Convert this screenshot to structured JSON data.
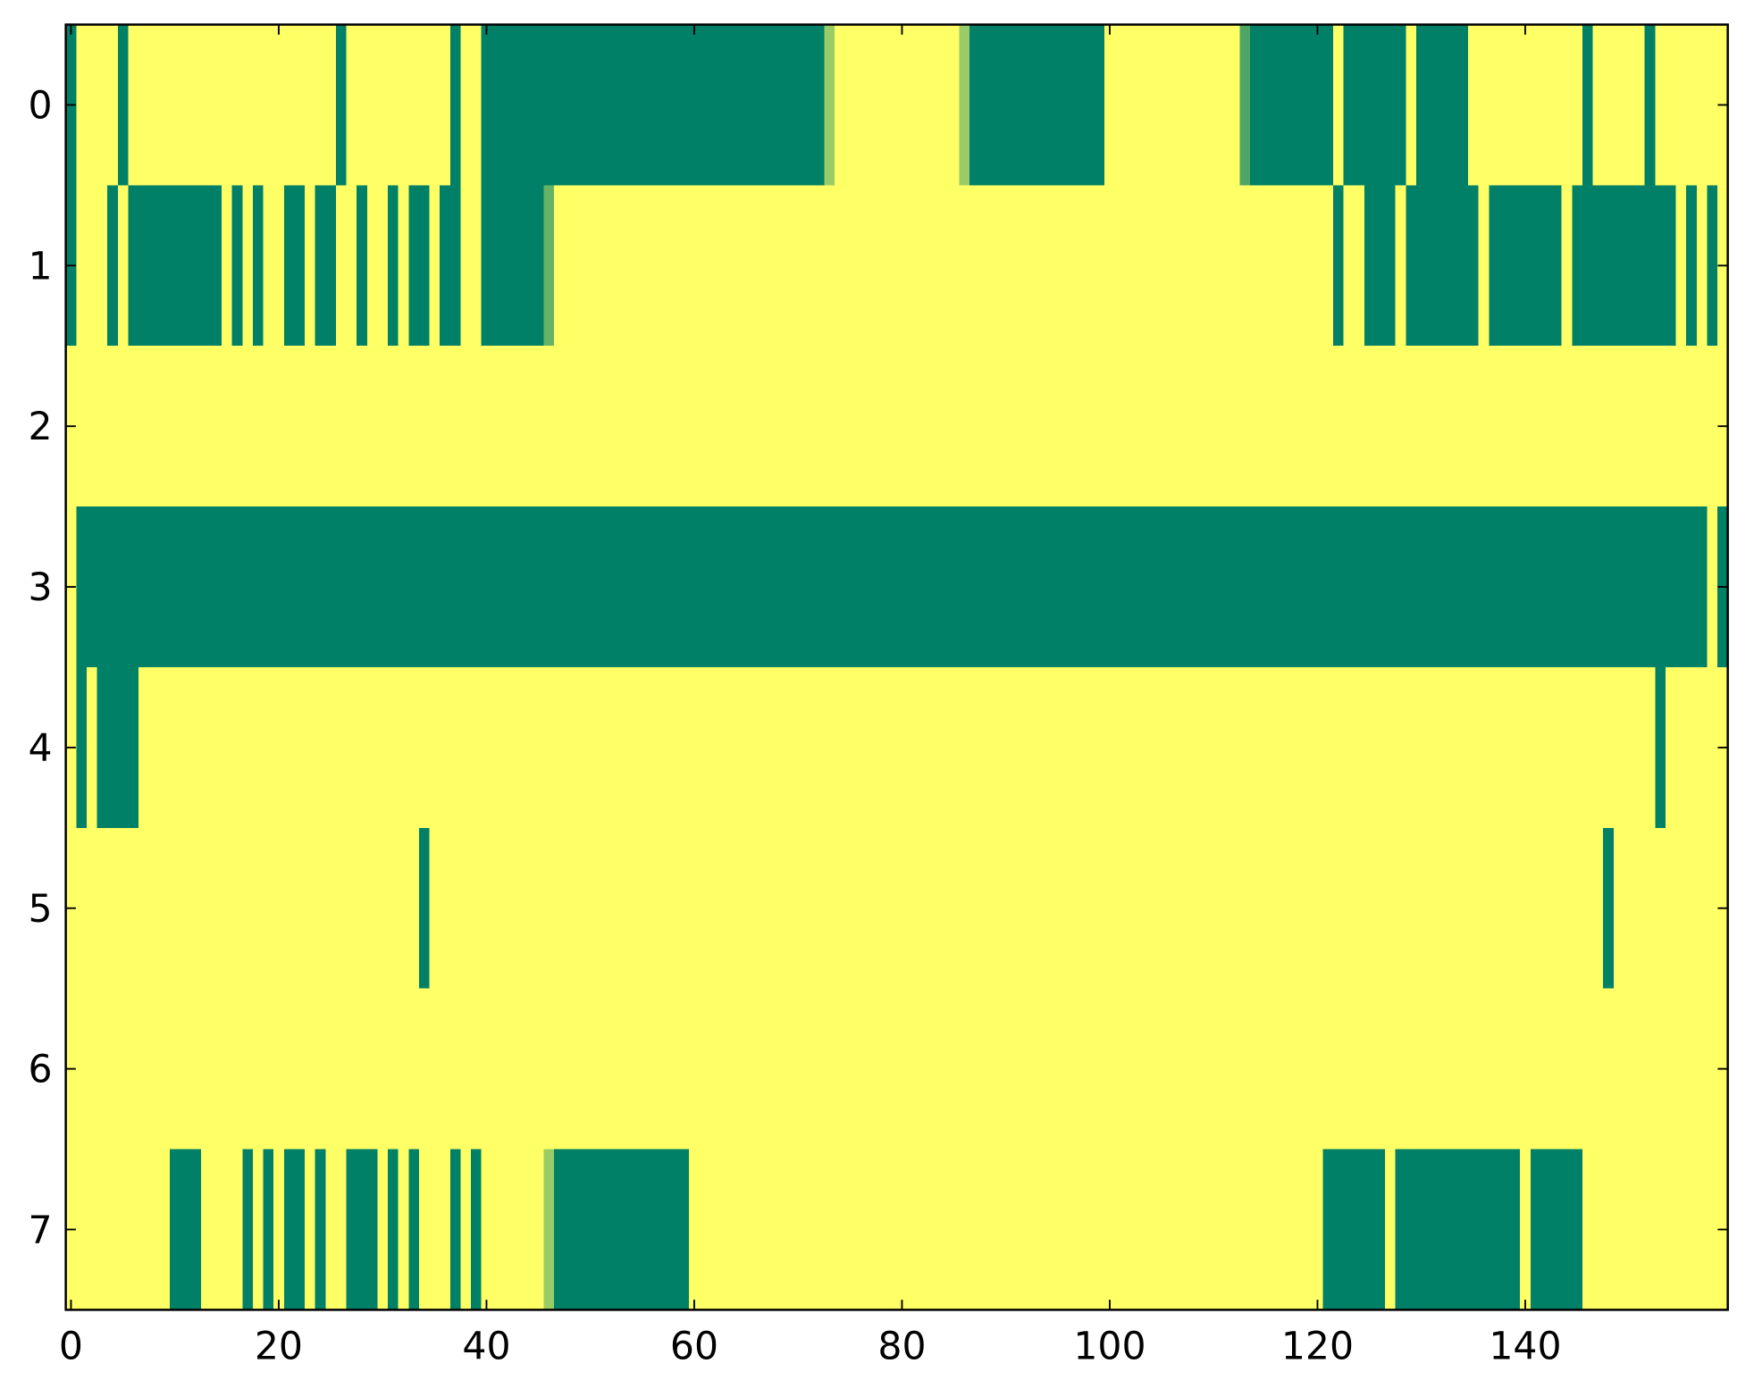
{
  "chart_data": {
    "type": "heatmap",
    "colormap": "summer",
    "xlim": [
      -0.5,
      159.5
    ],
    "ylim": [
      7.5,
      -0.5
    ],
    "xticks": [
      0,
      20,
      40,
      60,
      80,
      100,
      120,
      140
    ],
    "yticks": [
      0,
      1,
      2,
      3,
      4,
      5,
      6,
      7
    ],
    "z": [
      [
        0,
        1,
        1,
        1,
        1,
        0,
        1,
        1,
        1,
        1,
        1,
        1,
        1,
        1,
        1,
        1,
        1,
        1,
        1,
        1,
        1,
        1,
        1,
        1,
        1,
        1,
        0,
        1,
        1,
        1,
        1,
        1,
        1,
        1,
        1,
        1,
        1,
        0,
        1,
        1,
        0,
        0,
        0,
        0,
        0,
        0,
        0,
        0,
        0,
        0,
        0,
        0,
        0,
        0,
        0,
        0,
        0,
        0,
        0,
        0,
        0,
        0,
        0,
        0,
        0,
        0,
        0,
        0,
        0,
        0,
        0,
        0,
        0,
        0.6,
        1,
        1,
        1,
        1,
        1,
        1,
        1,
        1,
        1,
        1,
        1,
        1,
        0.6,
        0,
        0,
        0,
        0,
        0,
        0,
        0,
        0,
        0,
        0,
        0,
        0,
        0,
        1,
        1,
        1,
        1,
        1,
        1,
        1,
        1,
        1,
        1,
        1,
        1,
        1,
        0.3,
        0,
        0,
        0,
        0,
        0,
        0,
        0,
        0,
        1,
        0,
        0,
        0,
        0,
        0,
        0,
        1,
        0,
        0,
        0,
        0,
        0,
        1,
        1,
        1,
        1,
        1,
        1,
        1,
        1,
        1,
        1,
        1,
        0,
        1,
        1,
        1,
        1,
        1,
        0,
        1,
        1,
        1,
        1,
        1,
        1,
        1
      ],
      [
        0,
        1,
        1,
        1,
        0,
        1,
        0,
        0,
        0,
        0,
        0,
        0,
        0,
        0,
        0,
        1,
        0,
        1,
        0,
        1,
        1,
        0,
        0,
        1,
        0,
        0,
        1,
        1,
        0,
        1,
        1,
        0,
        1,
        0,
        0,
        1,
        0,
        0,
        1,
        1,
        0,
        0,
        0,
        0,
        0,
        0,
        0.4,
        1,
        1,
        1,
        1,
        1,
        1,
        1,
        1,
        1,
        1,
        1,
        1,
        1,
        1,
        1,
        1,
        1,
        1,
        1,
        1,
        1,
        1,
        1,
        1,
        1,
        1,
        1,
        1,
        1,
        1,
        1,
        1,
        1,
        1,
        1,
        1,
        1,
        1,
        1,
        1,
        1,
        1,
        1,
        1,
        1,
        1,
        1,
        1,
        1,
        1,
        1,
        1,
        1,
        1,
        1,
        1,
        1,
        1,
        1,
        1,
        1,
        1,
        1,
        1,
        1,
        1,
        1,
        1,
        1,
        1,
        1,
        1,
        1,
        1,
        1,
        0,
        1,
        1,
        0,
        0,
        0,
        1,
        0,
        0,
        0,
        0,
        0,
        0,
        0,
        1,
        0,
        0,
        0,
        0,
        0,
        0,
        0,
        1,
        0,
        0,
        0,
        0,
        0,
        0,
        0,
        0,
        0,
        0,
        1,
        0,
        1,
        0,
        1
      ],
      [
        1,
        1,
        1,
        1,
        1,
        1,
        1,
        1,
        1,
        1,
        1,
        1,
        1,
        1,
        1,
        1,
        1,
        1,
        1,
        1,
        1,
        1,
        1,
        1,
        1,
        1,
        1,
        1,
        1,
        1,
        1,
        1,
        1,
        1,
        1,
        1,
        1,
        1,
        1,
        1,
        1,
        1,
        1,
        1,
        1,
        1,
        1,
        1,
        1,
        1,
        1,
        1,
        1,
        1,
        1,
        1,
        1,
        1,
        1,
        1,
        1,
        1,
        1,
        1,
        1,
        1,
        1,
        1,
        1,
        1,
        1,
        1,
        1,
        1,
        1,
        1,
        1,
        1,
        1,
        1,
        1,
        1,
        1,
        1,
        1,
        1,
        1,
        1,
        1,
        1,
        1,
        1,
        1,
        1,
        1,
        1,
        1,
        1,
        1,
        1,
        1,
        1,
        1,
        1,
        1,
        1,
        1,
        1,
        1,
        1,
        1,
        1,
        1,
        1,
        1,
        1,
        1,
        1,
        1,
        1,
        1,
        1,
        1,
        1,
        1,
        1,
        1,
        1,
        1,
        1,
        1,
        1,
        1,
        1,
        1,
        1,
        1,
        1,
        1,
        1,
        1,
        1,
        1,
        1,
        1,
        1,
        1,
        1,
        1,
        1,
        1,
        1,
        1,
        1,
        1,
        1,
        1,
        1,
        1,
        1
      ],
      [
        1,
        0,
        0,
        0,
        0,
        0,
        0,
        0,
        0,
        0,
        0,
        0,
        0,
        0,
        0,
        0,
        0,
        0,
        0,
        0,
        0,
        0,
        0,
        0,
        0,
        0,
        0,
        0,
        0,
        0,
        0,
        0,
        0,
        0,
        0,
        0,
        0,
        0,
        0,
        0,
        0,
        0,
        0,
        0,
        0,
        0,
        0,
        0,
        0,
        0,
        0,
        0,
        0,
        0,
        0,
        0,
        0,
        0,
        0,
        0,
        0,
        0,
        0,
        0,
        0,
        0,
        0,
        0,
        0,
        0,
        0,
        0,
        0,
        0,
        0,
        0,
        0,
        0,
        0,
        0,
        0,
        0,
        0,
        0,
        0,
        0,
        0,
        0,
        0,
        0,
        0,
        0,
        0,
        0,
        0,
        0,
        0,
        0,
        0,
        0,
        0,
        0,
        0,
        0,
        0,
        0,
        0,
        0,
        0,
        0,
        0,
        0,
        0,
        0,
        0,
        0,
        0,
        0,
        0,
        0,
        0,
        0,
        0,
        0,
        0,
        0,
        0,
        0,
        0,
        0,
        0,
        0,
        0,
        0,
        0,
        0,
        0,
        0,
        0,
        0,
        0,
        0,
        0,
        0,
        0,
        0,
        0,
        0,
        0,
        0,
        0,
        0,
        0,
        0,
        0,
        0,
        0,
        0,
        1,
        0
      ],
      [
        1,
        0,
        1,
        0,
        0,
        0,
        0,
        1,
        1,
        1,
        1,
        1,
        1,
        1,
        1,
        1,
        1,
        1,
        1,
        1,
        1,
        1,
        1,
        1,
        1,
        1,
        1,
        1,
        1,
        1,
        1,
        1,
        1,
        1,
        1,
        1,
        1,
        1,
        1,
        1,
        1,
        1,
        1,
        1,
        1,
        1,
        1,
        1,
        1,
        1,
        1,
        1,
        1,
        1,
        1,
        1,
        1,
        1,
        1,
        1,
        1,
        1,
        1,
        1,
        1,
        1,
        1,
        1,
        1,
        1,
        1,
        1,
        1,
        1,
        1,
        1,
        1,
        1,
        1,
        1,
        1,
        1,
        1,
        1,
        1,
        1,
        1,
        1,
        1,
        1,
        1,
        1,
        1,
        1,
        1,
        1,
        1,
        1,
        1,
        1,
        1,
        1,
        1,
        1,
        1,
        1,
        1,
        1,
        1,
        1,
        1,
        1,
        1,
        1,
        1,
        1,
        1,
        1,
        1,
        1,
        1,
        1,
        1,
        1,
        1,
        1,
        1,
        1,
        1,
        1,
        1,
        1,
        1,
        1,
        1,
        1,
        1,
        1,
        1,
        1,
        1,
        1,
        1,
        1,
        1,
        1,
        1,
        1,
        1,
        1,
        1,
        1,
        1,
        0,
        1,
        1,
        1,
        1,
        1,
        1
      ],
      [
        1,
        1,
        1,
        1,
        1,
        1,
        1,
        1,
        1,
        1,
        1,
        1,
        1,
        1,
        1,
        1,
        1,
        1,
        1,
        1,
        1,
        1,
        1,
        1,
        1,
        1,
        1,
        1,
        1,
        1,
        1,
        1,
        1,
        1,
        0,
        1,
        1,
        1,
        1,
        1,
        1,
        1,
        1,
        1,
        1,
        1,
        1,
        1,
        1,
        1,
        1,
        1,
        1,
        1,
        1,
        1,
        1,
        1,
        1,
        1,
        1,
        1,
        1,
        1,
        1,
        1,
        1,
        1,
        1,
        1,
        1,
        1,
        1,
        1,
        1,
        1,
        1,
        1,
        1,
        1,
        1,
        1,
        1,
        1,
        1,
        1,
        1,
        1,
        1,
        1,
        1,
        1,
        1,
        1,
        1,
        1,
        1,
        1,
        1,
        1,
        1,
        1,
        1,
        1,
        1,
        1,
        1,
        1,
        1,
        1,
        1,
        1,
        1,
        1,
        1,
        1,
        1,
        1,
        1,
        1,
        1,
        1,
        1,
        1,
        1,
        1,
        1,
        1,
        1,
        1,
        1,
        1,
        1,
        1,
        1,
        1,
        1,
        1,
        1,
        1,
        1,
        1,
        1,
        1,
        1,
        1,
        1,
        1,
        0,
        1,
        1,
        1,
        1,
        1,
        1,
        1,
        1,
        1,
        1,
        1
      ],
      [
        1,
        1,
        1,
        1,
        1,
        1,
        1,
        1,
        1,
        1,
        1,
        1,
        1,
        1,
        1,
        1,
        1,
        1,
        1,
        1,
        1,
        1,
        1,
        1,
        1,
        1,
        1,
        1,
        1,
        1,
        1,
        1,
        1,
        1,
        1,
        1,
        1,
        1,
        1,
        1,
        1,
        1,
        1,
        1,
        1,
        1,
        1,
        1,
        1,
        1,
        1,
        1,
        1,
        1,
        1,
        1,
        1,
        1,
        1,
        1,
        1,
        1,
        1,
        1,
        1,
        1,
        1,
        1,
        1,
        1,
        1,
        1,
        1,
        1,
        1,
        1,
        1,
        1,
        1,
        1,
        1,
        1,
        1,
        1,
        1,
        1,
        1,
        1,
        1,
        1,
        1,
        1,
        1,
        1,
        1,
        1,
        1,
        1,
        1,
        1,
        1,
        1,
        1,
        1,
        1,
        1,
        1,
        1,
        1,
        1,
        1,
        1,
        1,
        1,
        1,
        1,
        1,
        1,
        1,
        1,
        1,
        1,
        1,
        1,
        1,
        1,
        1,
        1,
        1,
        1,
        1,
        1,
        1,
        1,
        1,
        1,
        1,
        1,
        1,
        1,
        1,
        1,
        1,
        1,
        1,
        1,
        1,
        1,
        1,
        1,
        1,
        1,
        1,
        1,
        1,
        1,
        1,
        1,
        1,
        1
      ],
      [
        1,
        1,
        1,
        1,
        1,
        1,
        1,
        1,
        1,
        1,
        0,
        0,
        0,
        1,
        1,
        1,
        1,
        0,
        1,
        0,
        1,
        0,
        0,
        1,
        0,
        1,
        1,
        0,
        0,
        0,
        1,
        0,
        1,
        0,
        1,
        1,
        1,
        0,
        1,
        0,
        1,
        1,
        1,
        1,
        1,
        1,
        0.6,
        0,
        0,
        0,
        0,
        0,
        0,
        0,
        0,
        0,
        0,
        0,
        0,
        0,
        1,
        1,
        1,
        1,
        1,
        1,
        1,
        1,
        1,
        1,
        1,
        1,
        1,
        1,
        1,
        1,
        1,
        1,
        1,
        1,
        1,
        1,
        1,
        1,
        1,
        1,
        1,
        1,
        1,
        1,
        1,
        1,
        1,
        1,
        1,
        1,
        1,
        1,
        1,
        1,
        1,
        1,
        1,
        1,
        1,
        1,
        1,
        1,
        1,
        1,
        1,
        1,
        1,
        1,
        1,
        1,
        1,
        1,
        1,
        1,
        1,
        0,
        0,
        0,
        0,
        0,
        0,
        1,
        0,
        0,
        0,
        0,
        0,
        0,
        0,
        0,
        0,
        0,
        0,
        0,
        1,
        0,
        0,
        0,
        0,
        0,
        1,
        1,
        1,
        1,
        1,
        1,
        1,
        1,
        1,
        1,
        1,
        1,
        1,
        1
      ]
    ]
  }
}
